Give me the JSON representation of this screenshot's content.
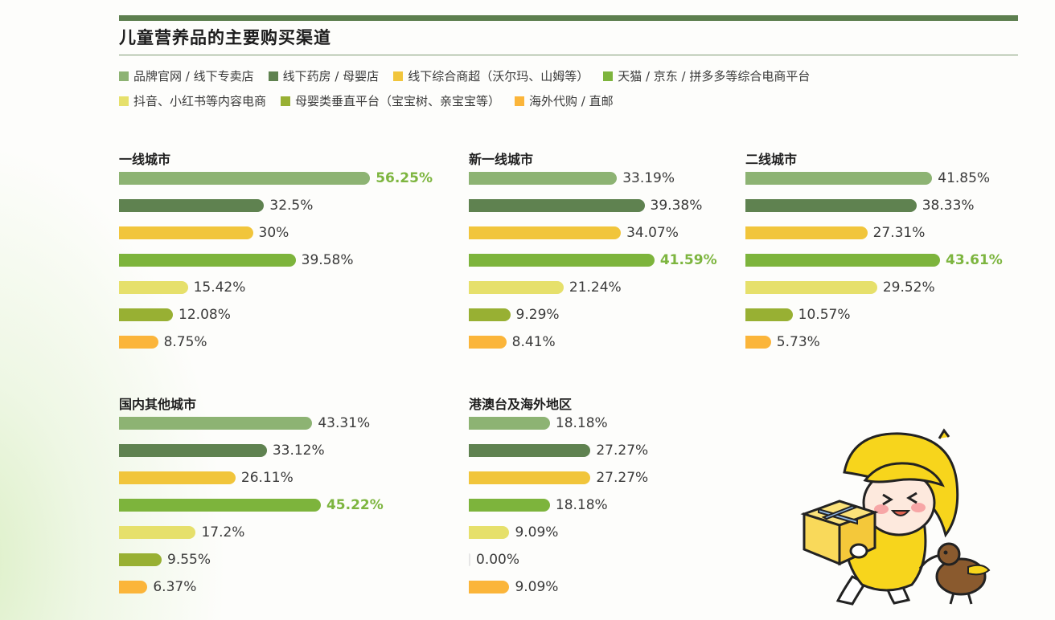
{
  "title": "儿童营养品的主要购买渠道",
  "legend_rows": [
    [
      {
        "label": "品牌官网 / 线下专卖店",
        "color": "#8db373"
      },
      {
        "label": "线下药房 / 母婴店",
        "color": "#5f8250"
      },
      {
        "label": "线下综合商超（沃尔玛、山姆等）",
        "color": "#f1c53b"
      },
      {
        "label": "天猫 / 京东 / 拼多多等综合电商平台",
        "color": "#7db43c"
      }
    ],
    [
      {
        "label": "抖音、小红书等内容电商",
        "color": "#e6e06b"
      },
      {
        "label": "母婴类垂直平台（宝宝树、亲宝宝等）",
        "color": "#98b033"
      },
      {
        "label": "海外代购 / 直邮",
        "color": "#fbb53a"
      }
    ]
  ],
  "chart_data": [
    {
      "type": "bar",
      "title": "一线城市",
      "categories": [
        "品牌官网 / 线下专卖店",
        "线下药房 / 母婴店",
        "线下综合商超（沃尔玛、山姆等）",
        "天猫 / 京东 / 拼多多等综合电商平台",
        "抖音、小红书等内容电商",
        "母婴类垂直平台（宝宝树、亲宝宝等）",
        "海外代购 / 直邮"
      ],
      "values": [
        56.25,
        32.5,
        30,
        39.58,
        15.42,
        12.08,
        8.75
      ],
      "labels": [
        "56.25%",
        "32.5%",
        "30%",
        "39.58%",
        "15.42%",
        "12.08%",
        "8.75%"
      ],
      "highlight_index": 0,
      "unit": "%"
    },
    {
      "type": "bar",
      "title": "新一线城市",
      "categories": [
        "品牌官网 / 线下专卖店",
        "线下药房 / 母婴店",
        "线下综合商超（沃尔玛、山姆等）",
        "天猫 / 京东 / 拼多多等综合电商平台",
        "抖音、小红书等内容电商",
        "母婴类垂直平台（宝宝树、亲宝宝等）",
        "海外代购 / 直邮"
      ],
      "values": [
        33.19,
        39.38,
        34.07,
        41.59,
        21.24,
        9.29,
        8.41
      ],
      "labels": [
        "33.19%",
        "39.38%",
        "34.07%",
        "41.59%",
        "21.24%",
        "9.29%",
        "8.41%"
      ],
      "highlight_index": 3,
      "unit": "%"
    },
    {
      "type": "bar",
      "title": "二线城市",
      "categories": [
        "品牌官网 / 线下专卖店",
        "线下药房 / 母婴店",
        "线下综合商超（沃尔玛、山姆等）",
        "天猫 / 京东 / 拼多多等综合电商平台",
        "抖音、小红书等内容电商",
        "母婴类垂直平台（宝宝树、亲宝宝等）",
        "海外代购 / 直邮"
      ],
      "values": [
        41.85,
        38.33,
        27.31,
        43.61,
        29.52,
        10.57,
        5.73
      ],
      "labels": [
        "41.85%",
        "38.33%",
        "27.31%",
        "43.61%",
        "29.52%",
        "10.57%",
        "5.73%"
      ],
      "highlight_index": 3,
      "unit": "%"
    },
    {
      "type": "bar",
      "title": "国内其他城市",
      "categories": [
        "品牌官网 / 线下专卖店",
        "线下药房 / 母婴店",
        "线下综合商超（沃尔玛、山姆等）",
        "天猫 / 京东 / 拼多多等综合电商平台",
        "抖音、小红书等内容电商",
        "母婴类垂直平台（宝宝树、亲宝宝等）",
        "海外代购 / 直邮"
      ],
      "values": [
        43.31,
        33.12,
        26.11,
        45.22,
        17.2,
        9.55,
        6.37
      ],
      "labels": [
        "43.31%",
        "33.12%",
        "26.11%",
        "45.22%",
        "17.2%",
        "9.55%",
        "6.37%"
      ],
      "highlight_index": 3,
      "unit": "%"
    },
    {
      "type": "bar",
      "title": "港澳台及海外地区",
      "categories": [
        "品牌官网 / 线下专卖店",
        "线下药房 / 母婴店",
        "线下综合商超（沃尔玛、山姆等）",
        "天猫 / 京东 / 拼多多等综合电商平台",
        "抖音、小红书等内容电商",
        "母婴类垂直平台（宝宝树、亲宝宝等）",
        "海外代购 / 直邮"
      ],
      "values": [
        18.18,
        27.27,
        27.27,
        18.18,
        9.09,
        0.0,
        9.09
      ],
      "labels": [
        "18.18%",
        "27.27%",
        "27.27%",
        "18.18%",
        "9.09%",
        "0.00%",
        "9.09%"
      ],
      "highlight_index": -1,
      "unit": "%"
    }
  ],
  "colors": {
    "series": [
      "#8db373",
      "#5f8250",
      "#f1c53b",
      "#7db43c",
      "#e6e06b",
      "#98b033",
      "#fbb53a"
    ],
    "highlight_text": "#7db53f",
    "header_bar": "#5d7f4f"
  },
  "illustration": {
    "name": "mascot-yellow-hat-child-with-gift-and-kiwi-bird"
  }
}
